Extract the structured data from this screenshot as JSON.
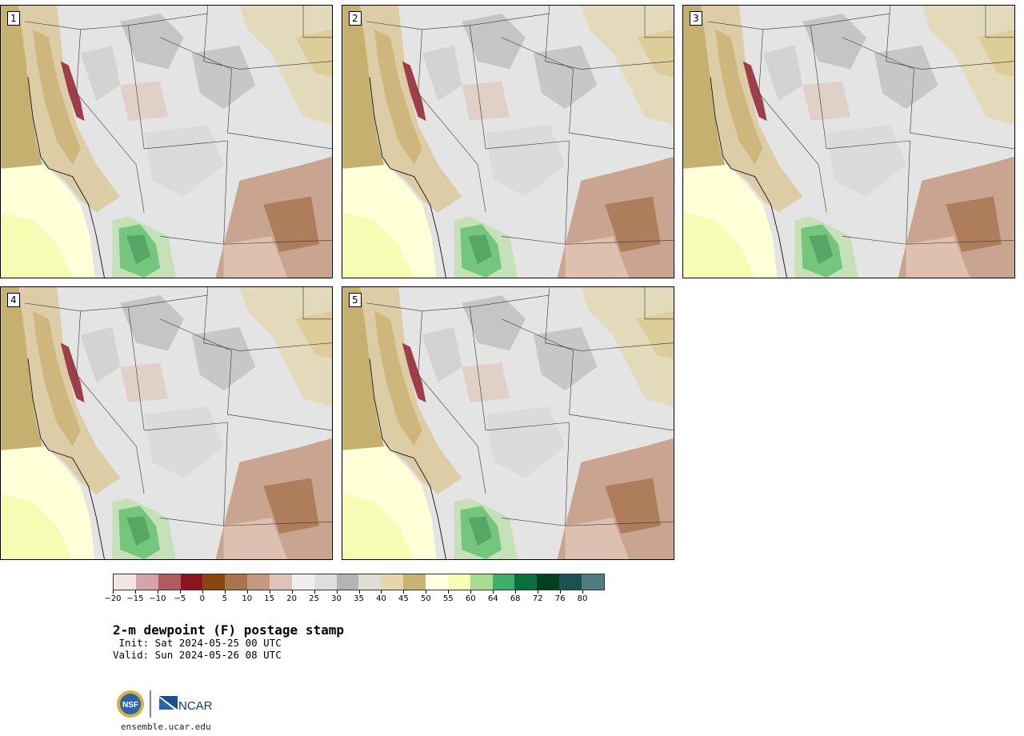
{
  "panels": [
    {
      "label": "1"
    },
    {
      "label": "2"
    },
    {
      "label": "3"
    },
    {
      "label": "4"
    },
    {
      "label": "5"
    }
  ],
  "colorbar": {
    "colors": [
      "#f5e6e6",
      "#d4a4a8",
      "#b05a62",
      "#8b1420",
      "#8a4510",
      "#a8734e",
      "#c49a82",
      "#dfc3b4",
      "#efefef",
      "#dedede",
      "#b4b4b4",
      "#deded6",
      "#e6d6ae",
      "#c9b272",
      "#ffffe4",
      "#f8fcb4",
      "#a8dc90",
      "#40ae6c",
      "#08703c",
      "#044020",
      "#1c5054",
      "#507c80"
    ],
    "tick_labels": [
      "−20",
      "−15",
      "−10",
      "−5",
      "0",
      "5",
      "10",
      "15",
      "20",
      "25",
      "30",
      "35",
      "40",
      "45",
      "50",
      "55",
      "60",
      "64",
      "68",
      "72",
      "76",
      "80"
    ]
  },
  "title": "2-m dewpoint (F) postage stamp",
  "init": " Init: Sat 2024-05-25 00 UTC",
  "valid": "Valid: Sun 2024-05-26 08 UTC",
  "logos": {
    "nsf": "NSF",
    "ncar": "NCAR"
  },
  "website": "ensemble.ucar.edu"
}
